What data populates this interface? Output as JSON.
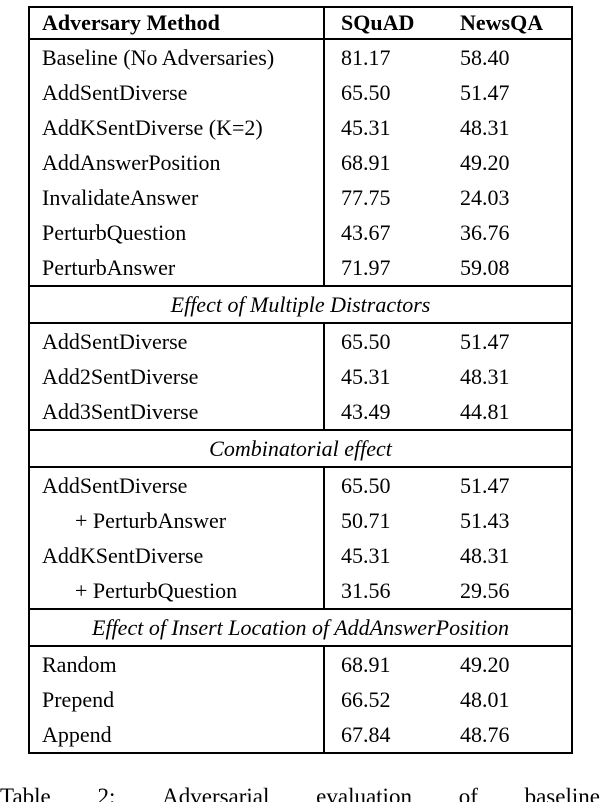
{
  "table": {
    "columns": [
      "Adversary Method",
      "SQuAD",
      "NewsQA"
    ],
    "sections": [
      {
        "header": null,
        "rows": [
          {
            "method": "Baseline (No Adversaries)",
            "squad": "81.17",
            "newsqa": "58.40",
            "indent": false
          },
          {
            "method": "AddSentDiverse",
            "squad": "65.50",
            "newsqa": "51.47",
            "indent": false
          },
          {
            "method": "AddKSentDiverse (K=2)",
            "squad": "45.31",
            "newsqa": "48.31",
            "indent": false
          },
          {
            "method": "AddAnswerPosition",
            "squad": "68.91",
            "newsqa": "49.20",
            "indent": false
          },
          {
            "method": "InvalidateAnswer",
            "squad": "77.75",
            "newsqa": "24.03",
            "indent": false
          },
          {
            "method": "PerturbQuestion",
            "squad": "43.67",
            "newsqa": "36.76",
            "indent": false
          },
          {
            "method": "PerturbAnswer",
            "squad": "71.97",
            "newsqa": "59.08",
            "indent": false
          }
        ]
      },
      {
        "header": "Effect of Multiple Distractors",
        "rows": [
          {
            "method": "AddSentDiverse",
            "squad": "65.50",
            "newsqa": "51.47",
            "indent": false
          },
          {
            "method": "Add2SentDiverse",
            "squad": "45.31",
            "newsqa": "48.31",
            "indent": false
          },
          {
            "method": "Add3SentDiverse",
            "squad": "43.49",
            "newsqa": "44.81",
            "indent": false
          }
        ]
      },
      {
        "header": "Combinatorial effect",
        "rows": [
          {
            "method": "AddSentDiverse",
            "squad": "65.50",
            "newsqa": "51.47",
            "indent": false
          },
          {
            "method": "+ PerturbAnswer",
            "squad": "50.71",
            "newsqa": "51.43",
            "indent": true
          },
          {
            "method": "AddKSentDiverse",
            "squad": "45.31",
            "newsqa": "48.31",
            "indent": false
          },
          {
            "method": "+ PerturbQuestion",
            "squad": "31.56",
            "newsqa": "29.56",
            "indent": true
          }
        ]
      },
      {
        "header": "Effect of Insert Location of AddAnswerPosition",
        "rows": [
          {
            "method": "Random",
            "squad": "68.91",
            "newsqa": "49.20",
            "indent": false
          },
          {
            "method": "Prepend",
            "squad": "66.52",
            "newsqa": "48.01",
            "indent": false
          },
          {
            "method": "Append",
            "squad": "67.84",
            "newsqa": "48.76",
            "indent": false
          }
        ]
      }
    ]
  },
  "caption": {
    "words": [
      "Table",
      "2:",
      "Adversarial",
      "evaluation",
      "of",
      "baseline"
    ]
  }
}
